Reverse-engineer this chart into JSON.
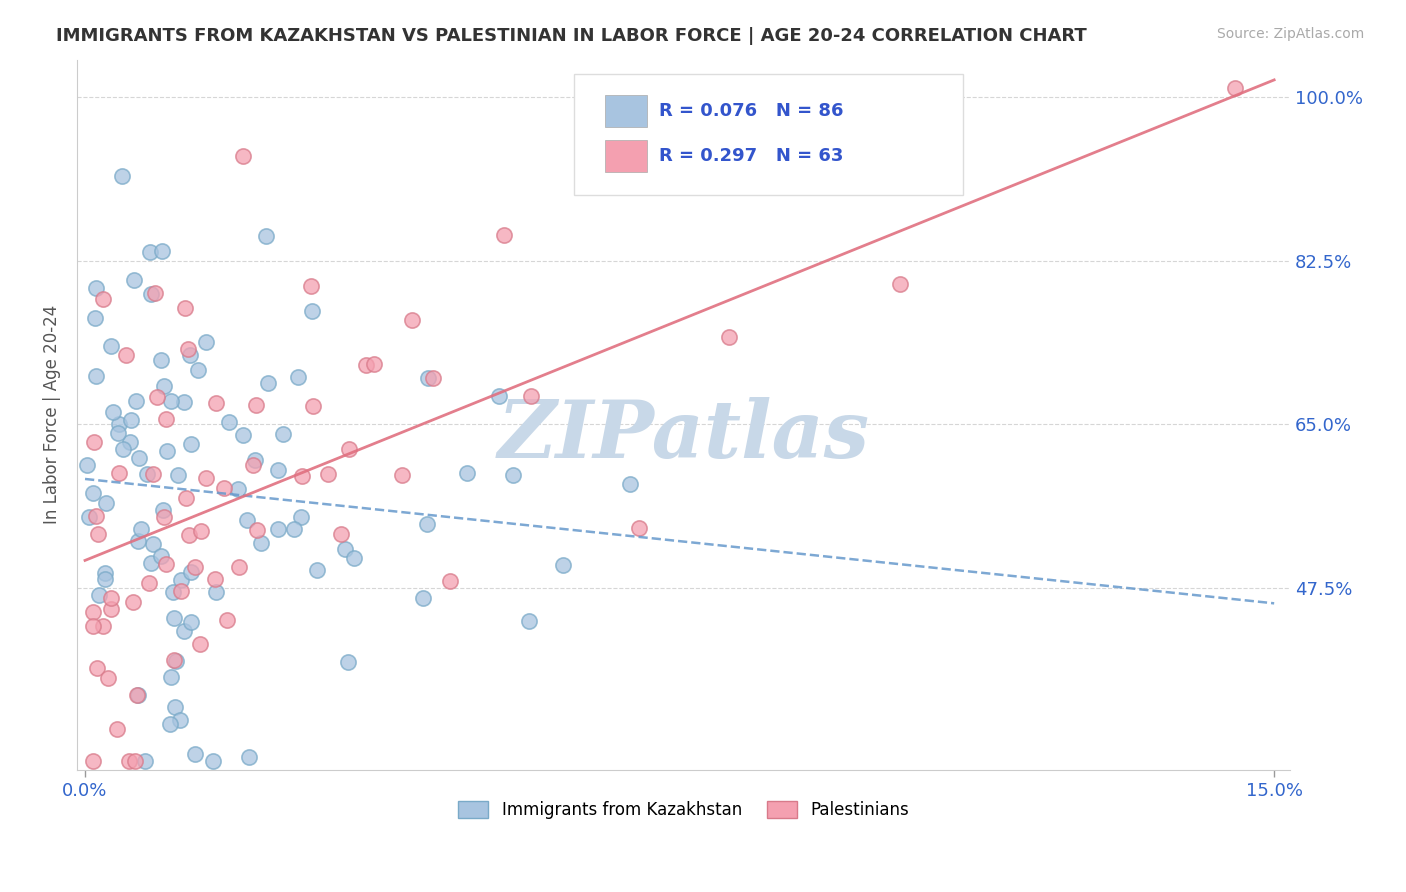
{
  "title": "IMMIGRANTS FROM KAZAKHSTAN VS PALESTINIAN IN LABOR FORCE | AGE 20-24 CORRELATION CHART",
  "source": "Source: ZipAtlas.com",
  "ylabel": "In Labor Force | Age 20-24",
  "xlim": [
    -0.001,
    0.152
  ],
  "ylim": [
    0.28,
    1.04
  ],
  "xticks": [
    0.0,
    0.15
  ],
  "xticklabels": [
    "0.0%",
    "15.0%"
  ],
  "yticks": [
    0.475,
    0.65,
    0.825,
    1.0
  ],
  "yticklabels": [
    "47.5%",
    "65.0%",
    "82.5%",
    "100.0%"
  ],
  "kazakhstan_color": "#a8c4e0",
  "kazakhstan_edge": "#7aaac8",
  "palestinian_color": "#f4a0b0",
  "palestinian_edge": "#d87a8a",
  "trendline_kaz_color": "#6699cc",
  "trendline_pal_color": "#e07080",
  "kazakhstan_R": 0.076,
  "kazakhstan_N": 86,
  "palestinian_R": 0.297,
  "palestinian_N": 63,
  "watermark": "ZIPatlas",
  "watermark_color": "#c8d8e8",
  "legend_label_kaz": "Immigrants from Kazakhstan",
  "legend_label_pal": "Palestinians"
}
